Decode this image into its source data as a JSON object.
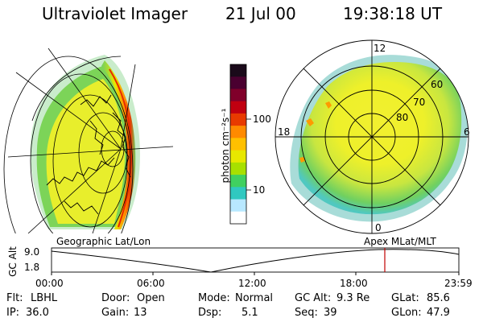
{
  "header": {
    "title": "Ultraviolet Imager",
    "date": "21 Jul 00",
    "time": "19:38:18 UT"
  },
  "colorbar": {
    "label": "photon cm⁻²s⁻¹",
    "ticks": [
      "100",
      "10"
    ],
    "colors": [
      "#1a0a1a",
      "#4a0030",
      "#80002a",
      "#c00010",
      "#e83a00",
      "#ff8a00",
      "#ffc000",
      "#e8e800",
      "#a8e000",
      "#40d060",
      "#30c8c0",
      "#b8e8ff",
      "#ffffff"
    ]
  },
  "polar_plot": {
    "labels_ring": [
      "80",
      "70",
      "60"
    ],
    "labels_clock": [
      "12",
      "18",
      "6",
      "0"
    ]
  },
  "panels": {
    "left_caption": "Geographic Lat/Lon",
    "right_caption": "Apex MLat/MLT"
  },
  "timeline": {
    "ylabel": "GC Alt",
    "yticks": [
      "9.0",
      "1.8"
    ],
    "xticks": [
      "00:00",
      "06:00",
      "12:00",
      "18:00",
      "23:59"
    ],
    "marker_time": "19:38"
  },
  "info": {
    "flt_label": "Flt:",
    "flt_value": "LBHL",
    "door_label": "Door:",
    "door_value": "Open",
    "mode_label": "Mode:",
    "mode_value": "Normal",
    "gcalt_label": "GC Alt:",
    "gcalt_value": "9.3 Re",
    "glat_label": "GLat:",
    "glat_value": "85.6",
    "ip_label": "IP:",
    "ip_value": "36.0",
    "gain_label": "Gain:",
    "gain_value": "13",
    "dsp_label": "Dsp:",
    "dsp_value": "5.1",
    "seq_label": "Seq:",
    "seq_value": "39",
    "glon_label": "GLon:",
    "glon_value": "47.9"
  }
}
